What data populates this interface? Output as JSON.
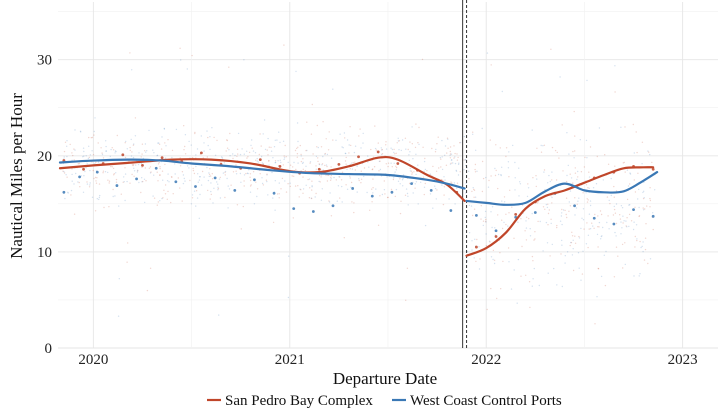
{
  "chart_data": {
    "type": "scatter",
    "title": "",
    "xlabel": "Departure Date",
    "ylabel": "Nautical Miles per Hour",
    "xlim": [
      2019.82,
      2023.18
    ],
    "ylim": [
      0,
      36
    ],
    "x_ticks": [
      2020,
      2021,
      2022,
      2023
    ],
    "x_tick_labels": [
      "2020",
      "2021",
      "2022",
      "2023"
    ],
    "y_ticks": [
      0,
      10,
      20,
      30
    ],
    "y_tick_labels": [
      "0",
      "10",
      "20",
      "30"
    ],
    "grid": true,
    "legend_position": "bottom",
    "vertical_markers": [
      2021.88,
      2021.9
    ],
    "series": [
      {
        "name": "San Pedro Bay Complex",
        "color": "#C0462A",
        "trend": {
          "segments": [
            {
              "x": [
                2019.83,
                2020.0,
                2020.2,
                2020.4,
                2020.6,
                2020.8,
                2021.0,
                2021.15,
                2021.3,
                2021.45,
                2021.55,
                2021.7,
                2021.8,
                2021.89
              ],
              "y": [
                18.7,
                19.0,
                19.3,
                19.6,
                19.6,
                19.2,
                18.4,
                18.3,
                18.9,
                19.8,
                19.6,
                18.0,
                17.0,
                15.3
              ]
            },
            {
              "x": [
                2021.9,
                2022.0,
                2022.1,
                2022.2,
                2022.3,
                2022.4,
                2022.5,
                2022.6,
                2022.7,
                2022.8,
                2022.85
              ],
              "y": [
                9.6,
                10.4,
                12.0,
                14.5,
                15.8,
                16.4,
                17.2,
                18.0,
                18.7,
                18.8,
                18.8
              ]
            }
          ]
        },
        "points": {
          "x": [
            2019.85,
            2019.95,
            2020.05,
            2020.15,
            2020.25,
            2020.35,
            2020.45,
            2020.55,
            2020.65,
            2020.75,
            2020.85,
            2020.95,
            2021.05,
            2021.15,
            2021.25,
            2021.35,
            2021.45,
            2021.55,
            2021.65,
            2021.75,
            2021.85,
            2021.95,
            2022.05,
            2022.15,
            2022.25,
            2022.35,
            2022.45,
            2022.55,
            2022.65,
            2022.75,
            2022.85
          ],
          "y": [
            19.5,
            18.6,
            19.2,
            20.1,
            19.0,
            19.8,
            19.4,
            20.3,
            19.1,
            18.7,
            19.6,
            18.9,
            18.2,
            18.6,
            19.1,
            19.9,
            20.4,
            19.2,
            18.5,
            17.4,
            16.2,
            10.5,
            11.6,
            13.9,
            15.2,
            16.1,
            16.8,
            17.7,
            18.3,
            18.9,
            18.6
          ]
        }
      },
      {
        "name": "West Coast Control Ports",
        "color": "#3A78B5",
        "trend": {
          "segments": [
            {
              "x": [
                2019.83,
                2020.0,
                2020.2,
                2020.35,
                2020.5,
                2020.7,
                2020.9,
                2021.1,
                2021.3,
                2021.5,
                2021.7,
                2021.8,
                2021.89
              ],
              "y": [
                19.3,
                19.5,
                19.6,
                19.5,
                19.2,
                18.9,
                18.5,
                18.2,
                18.1,
                18.0,
                17.5,
                17.1,
                16.6
              ]
            },
            {
              "x": [
                2021.9,
                2022.0,
                2022.1,
                2022.2,
                2022.3,
                2022.4,
                2022.5,
                2022.6,
                2022.7,
                2022.8,
                2022.87
              ],
              "y": [
                15.3,
                15.1,
                14.9,
                15.1,
                16.3,
                17.1,
                16.4,
                16.2,
                16.3,
                17.4,
                18.3
              ]
            }
          ]
        },
        "points": {
          "x": [
            2019.85,
            2019.93,
            2020.02,
            2020.12,
            2020.22,
            2020.32,
            2020.42,
            2020.52,
            2020.62,
            2020.72,
            2020.82,
            2020.92,
            2021.02,
            2021.12,
            2021.22,
            2021.32,
            2021.42,
            2021.52,
            2021.62,
            2021.72,
            2021.82,
            2021.95,
            2022.05,
            2022.15,
            2022.25,
            2022.35,
            2022.45,
            2022.55,
            2022.65,
            2022.75,
            2022.85
          ],
          "y": [
            16.2,
            17.8,
            18.3,
            16.9,
            17.6,
            18.7,
            17.3,
            16.8,
            17.7,
            16.4,
            17.5,
            16.1,
            14.5,
            14.2,
            14.8,
            16.6,
            15.8,
            16.2,
            17.1,
            16.4,
            14.3,
            13.8,
            12.2,
            13.6,
            14.1,
            16.1,
            14.8,
            13.5,
            12.9,
            14.4,
            13.7
          ]
        }
      }
    ]
  }
}
